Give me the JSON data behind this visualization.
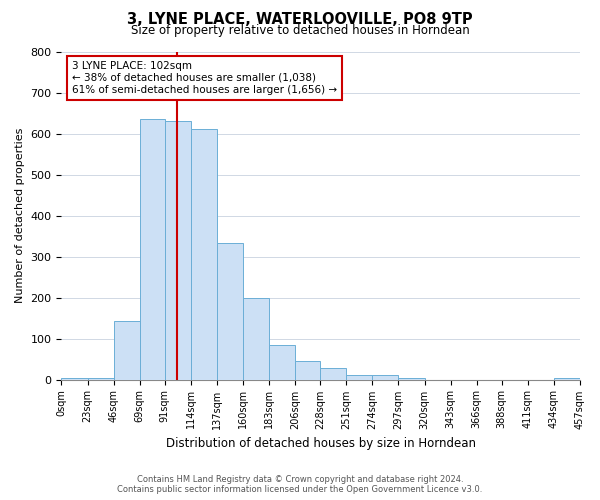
{
  "title": "3, LYNE PLACE, WATERLOOVILLE, PO8 9TP",
  "subtitle": "Size of property relative to detached houses in Horndean",
  "xlabel": "Distribution of detached houses by size in Horndean",
  "ylabel": "Number of detached properties",
  "bin_edges": [
    0,
    23,
    46,
    69,
    91,
    114,
    137,
    160,
    183,
    206,
    228,
    251,
    274,
    297,
    320,
    343,
    366,
    388,
    411,
    434,
    457
  ],
  "bar_heights": [
    3,
    5,
    143,
    635,
    630,
    610,
    332,
    200,
    85,
    46,
    27,
    12,
    12,
    5,
    0,
    0,
    0,
    0,
    0,
    5
  ],
  "bar_color": "#cce0f5",
  "bar_edgecolor": "#6baed6",
  "vline_x": 102,
  "vline_color": "#cc0000",
  "annotation_line1": "3 LYNE PLACE: 102sqm",
  "annotation_line2": "← 38% of detached houses are smaller (1,038)",
  "annotation_line3": "61% of semi-detached houses are larger (1,656) →",
  "annotation_box_edgecolor": "#cc0000",
  "annotation_box_facecolor": "#ffffff",
  "ylim": [
    0,
    800
  ],
  "yticks": [
    0,
    100,
    200,
    300,
    400,
    500,
    600,
    700,
    800
  ],
  "tick_labels": [
    "0sqm",
    "23sqm",
    "46sqm",
    "69sqm",
    "91sqm",
    "114sqm",
    "137sqm",
    "160sqm",
    "183sqm",
    "206sqm",
    "228sqm",
    "251sqm",
    "274sqm",
    "297sqm",
    "320sqm",
    "343sqm",
    "366sqm",
    "388sqm",
    "411sqm",
    "434sqm",
    "457sqm"
  ],
  "footer_line1": "Contains HM Land Registry data © Crown copyright and database right 2024.",
  "footer_line2": "Contains public sector information licensed under the Open Government Licence v3.0.",
  "background_color": "#ffffff",
  "grid_color": "#d0d8e4"
}
